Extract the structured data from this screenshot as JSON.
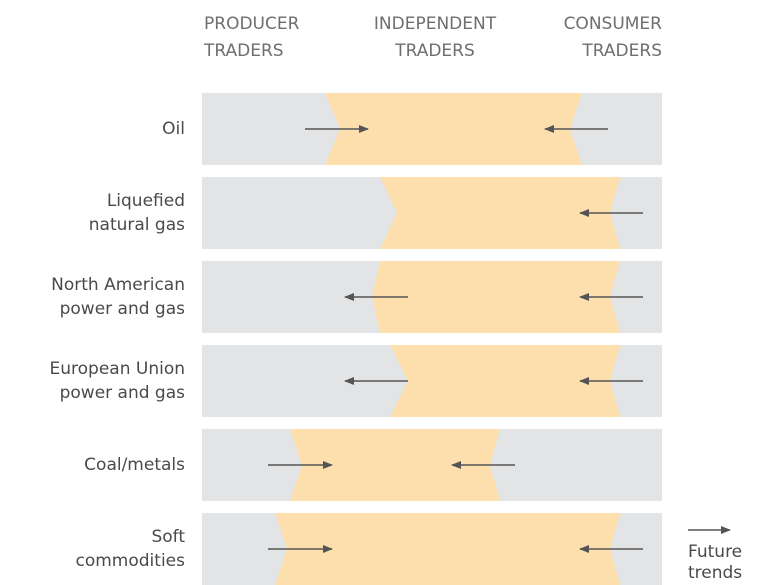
{
  "headers": [
    {
      "lines": [
        "PRODUCER",
        "TRADERS"
      ]
    },
    {
      "lines": [
        "INDEPENDENT",
        "TRADERS"
      ]
    },
    {
      "lines": [
        "CONSUMER",
        "TRADERS"
      ]
    }
  ],
  "rows": [
    {
      "lines": [
        "Oil"
      ]
    },
    {
      "lines": [
        "Liquefied",
        "natural gas"
      ]
    },
    {
      "lines": [
        "North American",
        "power and gas"
      ]
    },
    {
      "lines": [
        "European Union",
        "power and gas"
      ]
    },
    {
      "lines": [
        "Coal/metals"
      ]
    },
    {
      "lines": [
        "Soft",
        "commodities"
      ]
    }
  ],
  "legend": {
    "lines": [
      "Future",
      "trends"
    ]
  }
}
